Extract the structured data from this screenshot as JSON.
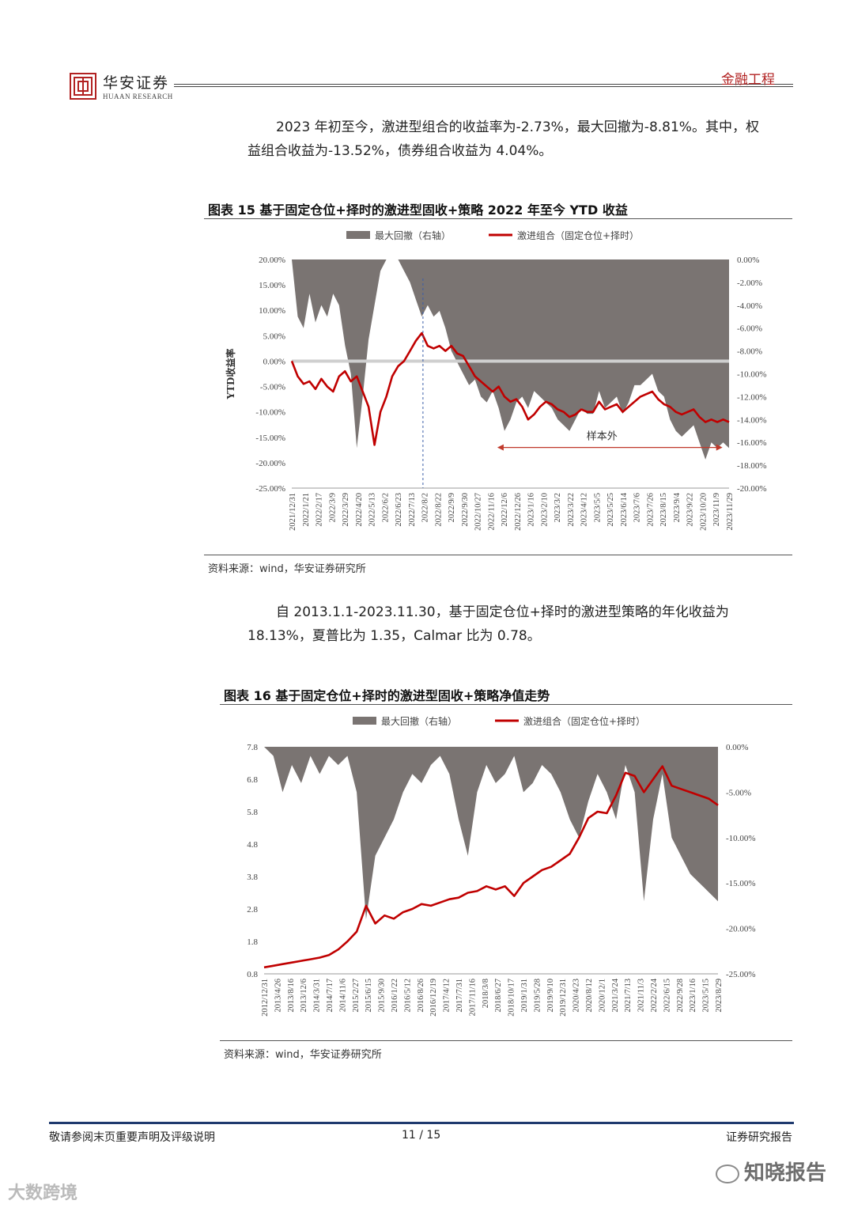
{
  "header": {
    "logo_cn": "华安证券",
    "logo_en": "HUAAN RESEARCH",
    "section": "金融工程"
  },
  "paragraph1": {
    "line1": "2023 年初至今，激进型组合的收益率为-2.73%，最大回撤为-8.81%。其中，权",
    "line2": "益组合收益为-13.52%，债券组合收益为 4.04%。"
  },
  "paragraph2": {
    "line1": "自 2013.1.1-2023.11.30，基于固定仓位+择时的激进型策略的年化收益为",
    "line2": "18.13%，夏普比为 1.35，Calmar 比为 0.78。"
  },
  "figure15": {
    "title": "图表 15 基于固定仓位+择时的激进型固收+策略 2022 年至今 YTD 收益",
    "source": "资料来源：wind，华安证券研究所"
  },
  "figure16": {
    "title": "图表 16 基于固定仓位+择时的激进型固收+策略净值走势",
    "source": "资料来源：wind，华安证券研究所"
  },
  "footer": {
    "left": "敬请参阅末页重要声明及评级说明",
    "page": "11 / 15",
    "right": "证券研究报告"
  },
  "watermarks": {
    "wm1": "知晓报告",
    "wm2": "大数跨境"
  },
  "colors": {
    "drawdown_fill": "#7a7472",
    "strategy_line": "#c00000",
    "zero_line": "#cfcfcf",
    "annotation": "#c0392b"
  },
  "chart_data": [
    {
      "type": "area+line",
      "legend": [
        "最大回撤（右轴）",
        "激进组合（固定仓位+择时）"
      ],
      "ylabel": "YTD收益率",
      "ylim": [
        -0.25,
        0.2
      ],
      "y_ticks": [
        "20.00%",
        "15.00%",
        "10.00%",
        "5.00%",
        "0.00%",
        "-5.00%",
        "-10.00%",
        "-15.00%",
        "-20.00%",
        "-25.00%"
      ],
      "y2lim": [
        -0.2,
        0.0
      ],
      "y2_ticks": [
        "0.00%",
        "-2.00%",
        "-4.00%",
        "-6.00%",
        "-8.00%",
        "-10.00%",
        "-12.00%",
        "-14.00%",
        "-16.00%",
        "-18.00%",
        "-20.00%"
      ],
      "x_ticks": [
        "2021/12/31",
        "2022/1/21",
        "2022/2/17",
        "2022/3/9",
        "2022/3/29",
        "2022/4/20",
        "2022/5/13",
        "2022/6/2",
        "2022/6/23",
        "2022/7/13",
        "2022/8/2",
        "2022/8/22",
        "2022/9/9",
        "2022/9/30",
        "2022/10/27",
        "2022/11/16",
        "2022/12/6",
        "2022/12/26",
        "2023/1/16",
        "2023/2/10",
        "2023/3/2",
        "2023/3/22",
        "2023/4/12",
        "2023/5/5",
        "2023/5/25",
        "2023/6/14",
        "2023/7/6",
        "2023/7/26",
        "2023/8/15",
        "2023/9/4",
        "2023/9/22",
        "2023/10/20",
        "2023/11/9",
        "2023/11/29"
      ],
      "annotation": "样本外",
      "series": [
        {
          "name": "激进组合（固定仓位+择时）",
          "axis": "left",
          "values": [
            0.0,
            -0.03,
            -0.045,
            -0.04,
            -0.055,
            -0.035,
            -0.05,
            -0.06,
            -0.03,
            -0.02,
            -0.04,
            -0.03,
            -0.06,
            -0.09,
            -0.165,
            -0.1,
            -0.07,
            -0.03,
            -0.01,
            0.0,
            0.02,
            0.04,
            0.055,
            0.03,
            0.025,
            0.03,
            0.02,
            0.03,
            0.015,
            0.01,
            -0.01,
            -0.03,
            -0.04,
            -0.05,
            -0.06,
            -0.05,
            -0.07,
            -0.08,
            -0.075,
            -0.09,
            -0.115,
            -0.105,
            -0.09,
            -0.08,
            -0.085,
            -0.095,
            -0.1,
            -0.11,
            -0.105,
            -0.095,
            -0.1,
            -0.1,
            -0.08,
            -0.095,
            -0.09,
            -0.085,
            -0.1,
            -0.09,
            -0.08,
            -0.07,
            -0.065,
            -0.06,
            -0.075,
            -0.085,
            -0.09,
            -0.1,
            -0.105,
            -0.1,
            -0.095,
            -0.11,
            -0.12,
            -0.115,
            -0.12,
            -0.115,
            -0.12
          ]
        },
        {
          "name": "最大回撤（右轴）",
          "axis": "right",
          "values": [
            0.0,
            -0.05,
            -0.06,
            -0.03,
            -0.055,
            -0.04,
            -0.05,
            -0.03,
            -0.04,
            -0.075,
            -0.1,
            -0.165,
            -0.12,
            -0.07,
            -0.04,
            -0.01,
            0.0,
            0.0,
            0.0,
            -0.01,
            -0.02,
            -0.035,
            -0.05,
            -0.04,
            -0.05,
            -0.045,
            -0.06,
            -0.08,
            -0.09,
            -0.1,
            -0.11,
            -0.105,
            -0.12,
            -0.125,
            -0.115,
            -0.13,
            -0.15,
            -0.14,
            -0.125,
            -0.12,
            -0.13,
            -0.115,
            -0.12,
            -0.125,
            -0.13,
            -0.14,
            -0.145,
            -0.15,
            -0.14,
            -0.13,
            -0.135,
            -0.135,
            -0.115,
            -0.13,
            -0.125,
            -0.12,
            -0.135,
            -0.125,
            -0.11,
            -0.11,
            -0.105,
            -0.1,
            -0.115,
            -0.12,
            -0.14,
            -0.15,
            -0.155,
            -0.15,
            -0.145,
            -0.16,
            -0.175,
            -0.16,
            -0.165,
            -0.16,
            -0.165
          ]
        }
      ]
    },
    {
      "type": "area+line",
      "legend": [
        "最大回撤（右轴）",
        "激进组合（固定仓位+择时）"
      ],
      "ylim": [
        0.8,
        7.8
      ],
      "y_ticks": [
        "7.8",
        "6.8",
        "5.8",
        "4.8",
        "3.8",
        "2.8",
        "1.8",
        "0.8"
      ],
      "y2lim": [
        -0.25,
        0.0
      ],
      "y2_ticks": [
        "0.00%",
        "-5.00%",
        "-10.00%",
        "-15.00%",
        "-20.00%",
        "-25.00%"
      ],
      "x_ticks": [
        "2012/12/31",
        "2013/4/26",
        "2013/8/16",
        "2013/12/6",
        "2014/3/31",
        "2014/7/17",
        "2014/11/6",
        "2015/2/27",
        "2015/6/15",
        "2015/9/30",
        "2016/1/22",
        "2016/5/12",
        "2016/8/26",
        "2016/12/19",
        "2017/4/12",
        "2017/7/31",
        "2017/11/16",
        "2018/3/8",
        "2018/6/27",
        "2018/10/17",
        "2019/1/31",
        "2019/5/28",
        "2019/9/10",
        "2019/12/31",
        "2020/4/23",
        "2020/8/12",
        "2020/12/1",
        "2021/3/24",
        "2021/7/13",
        "2021/11/3",
        "2022/2/24",
        "2022/6/15",
        "2022/9/28",
        "2023/1/16",
        "2023/5/15",
        "2023/8/29"
      ],
      "series": [
        {
          "name": "激进组合（固定仓位+择时）",
          "axis": "left",
          "values": [
            1.0,
            1.05,
            1.1,
            1.15,
            1.2,
            1.25,
            1.3,
            1.38,
            1.55,
            1.8,
            2.1,
            2.9,
            2.35,
            2.6,
            2.5,
            2.7,
            2.8,
            2.95,
            2.9,
            3.0,
            3.1,
            3.15,
            3.3,
            3.35,
            3.5,
            3.4,
            3.5,
            3.2,
            3.6,
            3.8,
            4.0,
            4.1,
            4.3,
            4.5,
            5.0,
            5.6,
            5.8,
            5.75,
            6.3,
            7.0,
            6.9,
            6.4,
            6.8,
            7.2,
            6.6,
            6.5,
            6.4,
            6.3,
            6.2,
            6.0
          ]
        },
        {
          "name": "最大回撤（右轴）",
          "axis": "right",
          "values": [
            0.0,
            -0.01,
            -0.05,
            -0.02,
            -0.04,
            -0.01,
            -0.03,
            -0.01,
            -0.02,
            -0.01,
            -0.05,
            -0.19,
            -0.12,
            -0.1,
            -0.08,
            -0.05,
            -0.03,
            -0.04,
            -0.02,
            -0.01,
            -0.03,
            -0.08,
            -0.12,
            -0.05,
            -0.02,
            -0.04,
            -0.03,
            -0.01,
            -0.05,
            -0.04,
            -0.02,
            -0.03,
            -0.05,
            -0.08,
            -0.1,
            -0.06,
            -0.03,
            -0.05,
            -0.08,
            -0.02,
            -0.05,
            -0.17,
            -0.08,
            -0.03,
            -0.1,
            -0.12,
            -0.14,
            -0.15,
            -0.16,
            -0.17
          ]
        }
      ]
    }
  ]
}
